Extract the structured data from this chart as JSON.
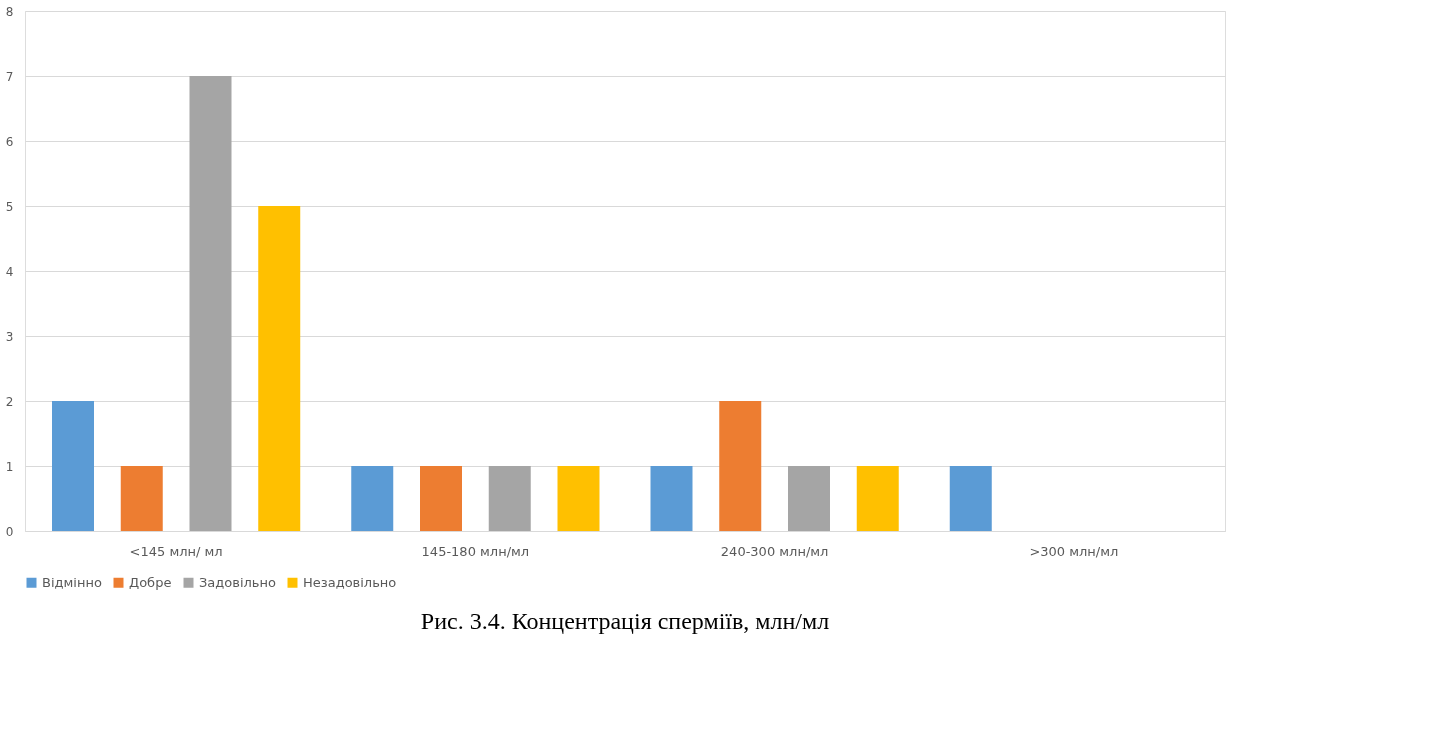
{
  "chart_data": {
    "type": "bar",
    "categories": [
      "<145 млн/ мл",
      "145-180 млн/мл",
      "240-300 млн/мл",
      ">300 млн/мл"
    ],
    "series": [
      {
        "name": "Відмінно",
        "color": "#5b9bd5",
        "values": [
          2,
          1,
          1,
          1
        ]
      },
      {
        "name": "Добре",
        "color": "#ed7d31",
        "values": [
          1,
          1,
          2,
          0
        ]
      },
      {
        "name": "Задовільно",
        "color": "#a5a5a5",
        "values": [
          7,
          1,
          1,
          0
        ]
      },
      {
        "name": "Незадовільно",
        "color": "#ffc000",
        "values": [
          5,
          1,
          1,
          0
        ]
      }
    ],
    "ylim": [
      0,
      8
    ],
    "yticks": [
      0,
      1,
      2,
      3,
      4,
      5,
      6,
      7,
      8
    ],
    "grid": "y",
    "legend": "bottom",
    "annotations": [
      "Рис. 3.4. Концентрація сперміїв, млн/мл"
    ]
  }
}
